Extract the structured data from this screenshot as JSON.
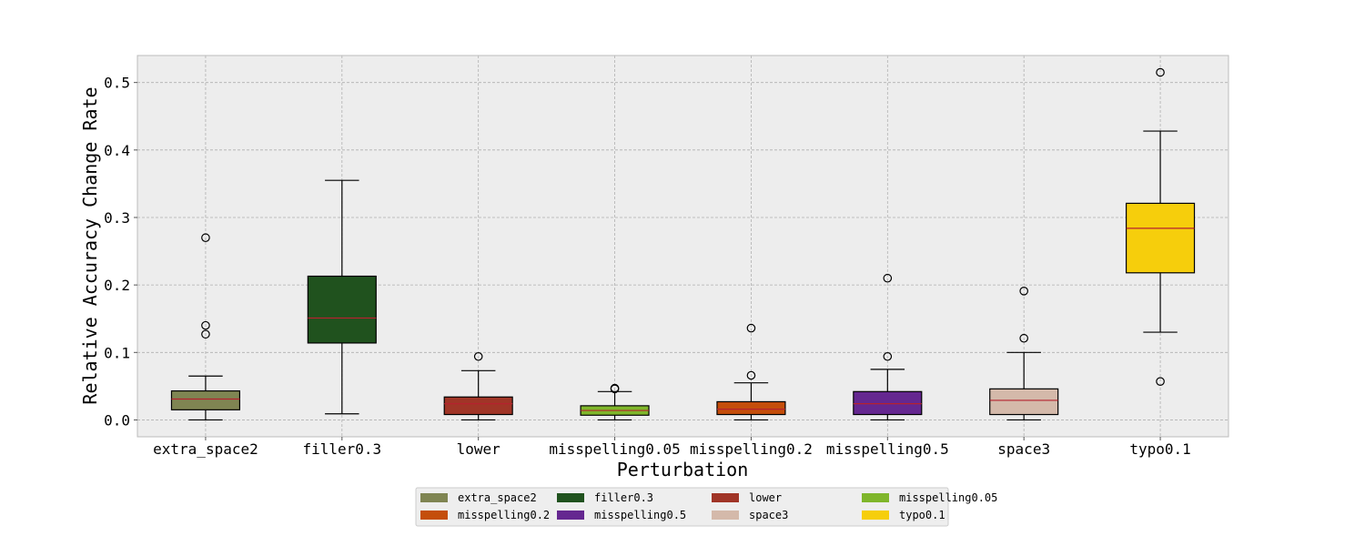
{
  "chart_data": {
    "type": "box",
    "title": "",
    "xlabel": "Perturbation",
    "ylabel": "Relative Accuracy Change Rate",
    "ylim": [
      -0.025,
      0.54
    ],
    "yticks": [
      0.0,
      0.1,
      0.2,
      0.3,
      0.4,
      0.5
    ],
    "ytick_labels": [
      "0.0",
      "0.1",
      "0.2",
      "0.3",
      "0.4",
      "0.5"
    ],
    "grid": true,
    "legend_position": "bottom-center",
    "legend_columns": 4,
    "categories": [
      "extra_space2",
      "filler0.3",
      "lower",
      "misspelling0.05",
      "misspelling0.2",
      "misspelling0.5",
      "space3",
      "typo0.1"
    ],
    "series": [
      {
        "name": "extra_space2",
        "color": "#7f8552",
        "min": 0.0,
        "q1": 0.015,
        "median": 0.031,
        "q3": 0.043,
        "max": 0.065,
        "outliers": [
          0.127,
          0.14,
          0.27
        ]
      },
      {
        "name": "filler0.3",
        "color": "#20521e",
        "min": 0.009,
        "q1": 0.114,
        "median": 0.151,
        "q3": 0.213,
        "max": 0.355,
        "outliers": []
      },
      {
        "name": "lower",
        "color": "#a03527",
        "min": 0.0,
        "q1": 0.008,
        "median": 0.024,
        "q3": 0.034,
        "max": 0.073,
        "outliers": [
          0.094
        ]
      },
      {
        "name": "misspelling0.05",
        "color": "#7fb62b",
        "min": 0.0,
        "q1": 0.007,
        "median": 0.014,
        "q3": 0.021,
        "max": 0.042,
        "outliers": [
          0.046,
          0.047
        ]
      },
      {
        "name": "misspelling0.2",
        "color": "#c44e0b",
        "min": 0.0,
        "q1": 0.008,
        "median": 0.016,
        "q3": 0.027,
        "max": 0.055,
        "outliers": [
          0.066,
          0.136
        ]
      },
      {
        "name": "misspelling0.5",
        "color": "#652790",
        "min": 0.0,
        "q1": 0.008,
        "median": 0.024,
        "q3": 0.042,
        "max": 0.075,
        "outliers": [
          0.094,
          0.21
        ]
      },
      {
        "name": "space3",
        "color": "#d4b9aa",
        "min": 0.0,
        "q1": 0.008,
        "median": 0.029,
        "q3": 0.046,
        "max": 0.1,
        "outliers": [
          0.121,
          0.191
        ]
      },
      {
        "name": "typo0.1",
        "color": "#f6ce0c",
        "min": 0.13,
        "q1": 0.218,
        "median": 0.284,
        "q3": 0.321,
        "max": 0.428,
        "outliers": [
          0.057,
          0.515
        ]
      }
    ],
    "median_color": "#b5222f"
  }
}
